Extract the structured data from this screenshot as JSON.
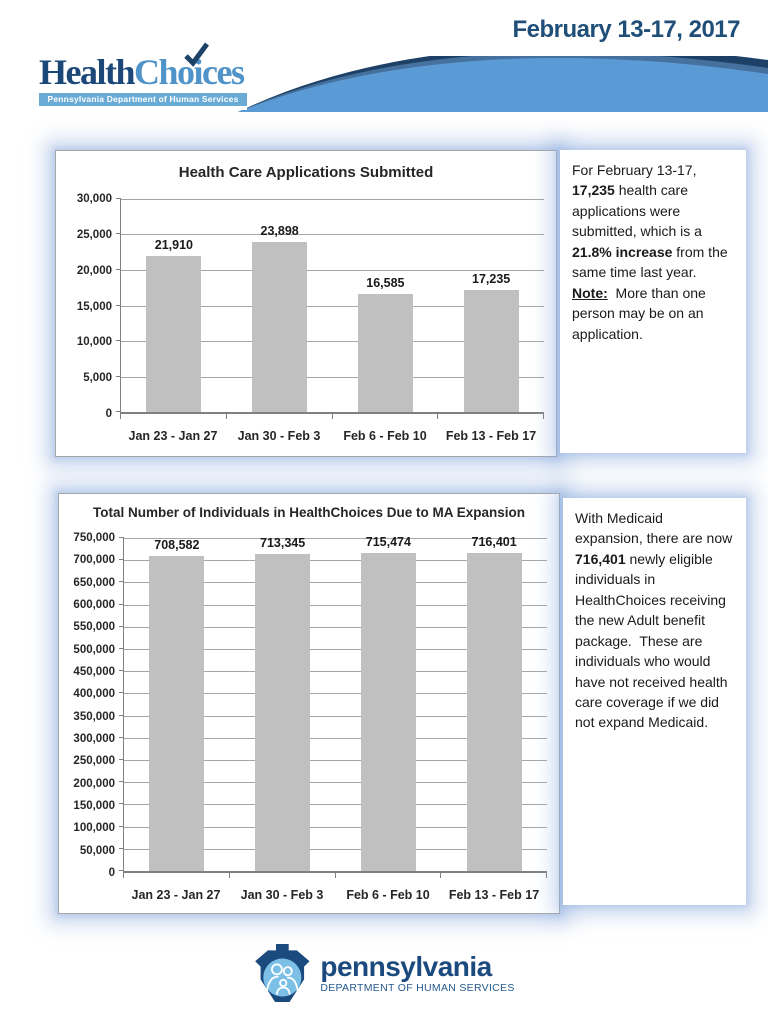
{
  "page": {
    "date": "February 13-17, 2017"
  },
  "logo": {
    "brand_health": "Health",
    "brand_choices": "Choices",
    "tagline": "Pennsylvania Department of Human Services"
  },
  "colors": {
    "navy": "#1f4e79",
    "swoosh_light_blue": "#5b9bd5",
    "swoosh_slate": "#46709e",
    "swoosh_dark": "#1d4166",
    "logo_band_blue": "#6aabd6",
    "bar_gray": "#c0c0c0",
    "gridline_gray": "#a6a6a6",
    "axis_gray": "#808080",
    "glow_blue": "#94b2e1",
    "keystone_navy": "#1b4a7e",
    "keystone_light_blue": "#7cc0e8"
  },
  "chart_data": [
    {
      "type": "bar",
      "title": "Health Care Applications Submitted",
      "categories": [
        "Jan 23 - Jan 27",
        "Jan 30 - Feb 3",
        "Feb 6 - Feb 10",
        "Feb 13 - Feb 17"
      ],
      "values": [
        21910,
        23898,
        16585,
        17235
      ],
      "data_labels": [
        "21,910",
        "23,898",
        "16,585",
        "17,235"
      ],
      "ylim": [
        0,
        30000
      ],
      "ytick_step": 5000,
      "ytick_labels": [
        "30,000",
        "25,000",
        "20,000",
        "15,000",
        "10,000",
        "5,000",
        "0"
      ],
      "xlabel": "",
      "ylabel": "",
      "grid": true,
      "legend": "none",
      "bar_color": "#c0c0c0"
    },
    {
      "type": "bar",
      "title": "Total Number of Individuals in HealthChoices Due to MA Expansion",
      "categories": [
        "Jan 23 - Jan 27",
        "Jan 30 - Feb 3",
        "Feb 6 - Feb 10",
        "Feb 13 - Feb 17"
      ],
      "values": [
        708582,
        713345,
        715474,
        716401
      ],
      "data_labels": [
        "708,582",
        "713,345",
        "715,474",
        "716,401"
      ],
      "ylim": [
        0,
        750000
      ],
      "ytick_step": 50000,
      "ytick_labels": [
        "750,000",
        "700,000",
        "650,000",
        "600,000",
        "550,000",
        "500,000",
        "450,000",
        "400,000",
        "350,000",
        "300,000",
        "250,000",
        "200,000",
        "150,000",
        "100,000",
        "50,000",
        "0"
      ],
      "xlabel": "",
      "ylabel": "",
      "grid": true,
      "legend": "none",
      "bar_color": "#c0c0c0"
    }
  ],
  "notes": [
    {
      "segments": [
        {
          "text": "For February 13-17, ",
          "bold": false
        },
        {
          "text": "17,235",
          "bold": true
        },
        {
          "text": " health care applications were submitted, which is a ",
          "bold": false
        },
        {
          "text": "21.8% increase",
          "bold": true
        },
        {
          "text": " from the same time last year.",
          "bold": false
        },
        {
          "text": "Note:",
          "bold": true,
          "underline": true,
          "break_before": true
        },
        {
          "text": "  More than one person may be on an application.",
          "bold": false
        }
      ]
    },
    {
      "segments": [
        {
          "text": "With Medicaid expansion, there are now ",
          "bold": false
        },
        {
          "text": "716,401",
          "bold": true
        },
        {
          "text": " newly eligible individuals in HealthChoices receiving the new Adult benefit package.  These are individuals who would have not received health care coverage if we did not expand Medicaid.",
          "bold": false
        }
      ]
    }
  ],
  "footer": {
    "brand": "pennsylvania",
    "subtitle": "DEPARTMENT OF HUMAN SERVICES"
  }
}
